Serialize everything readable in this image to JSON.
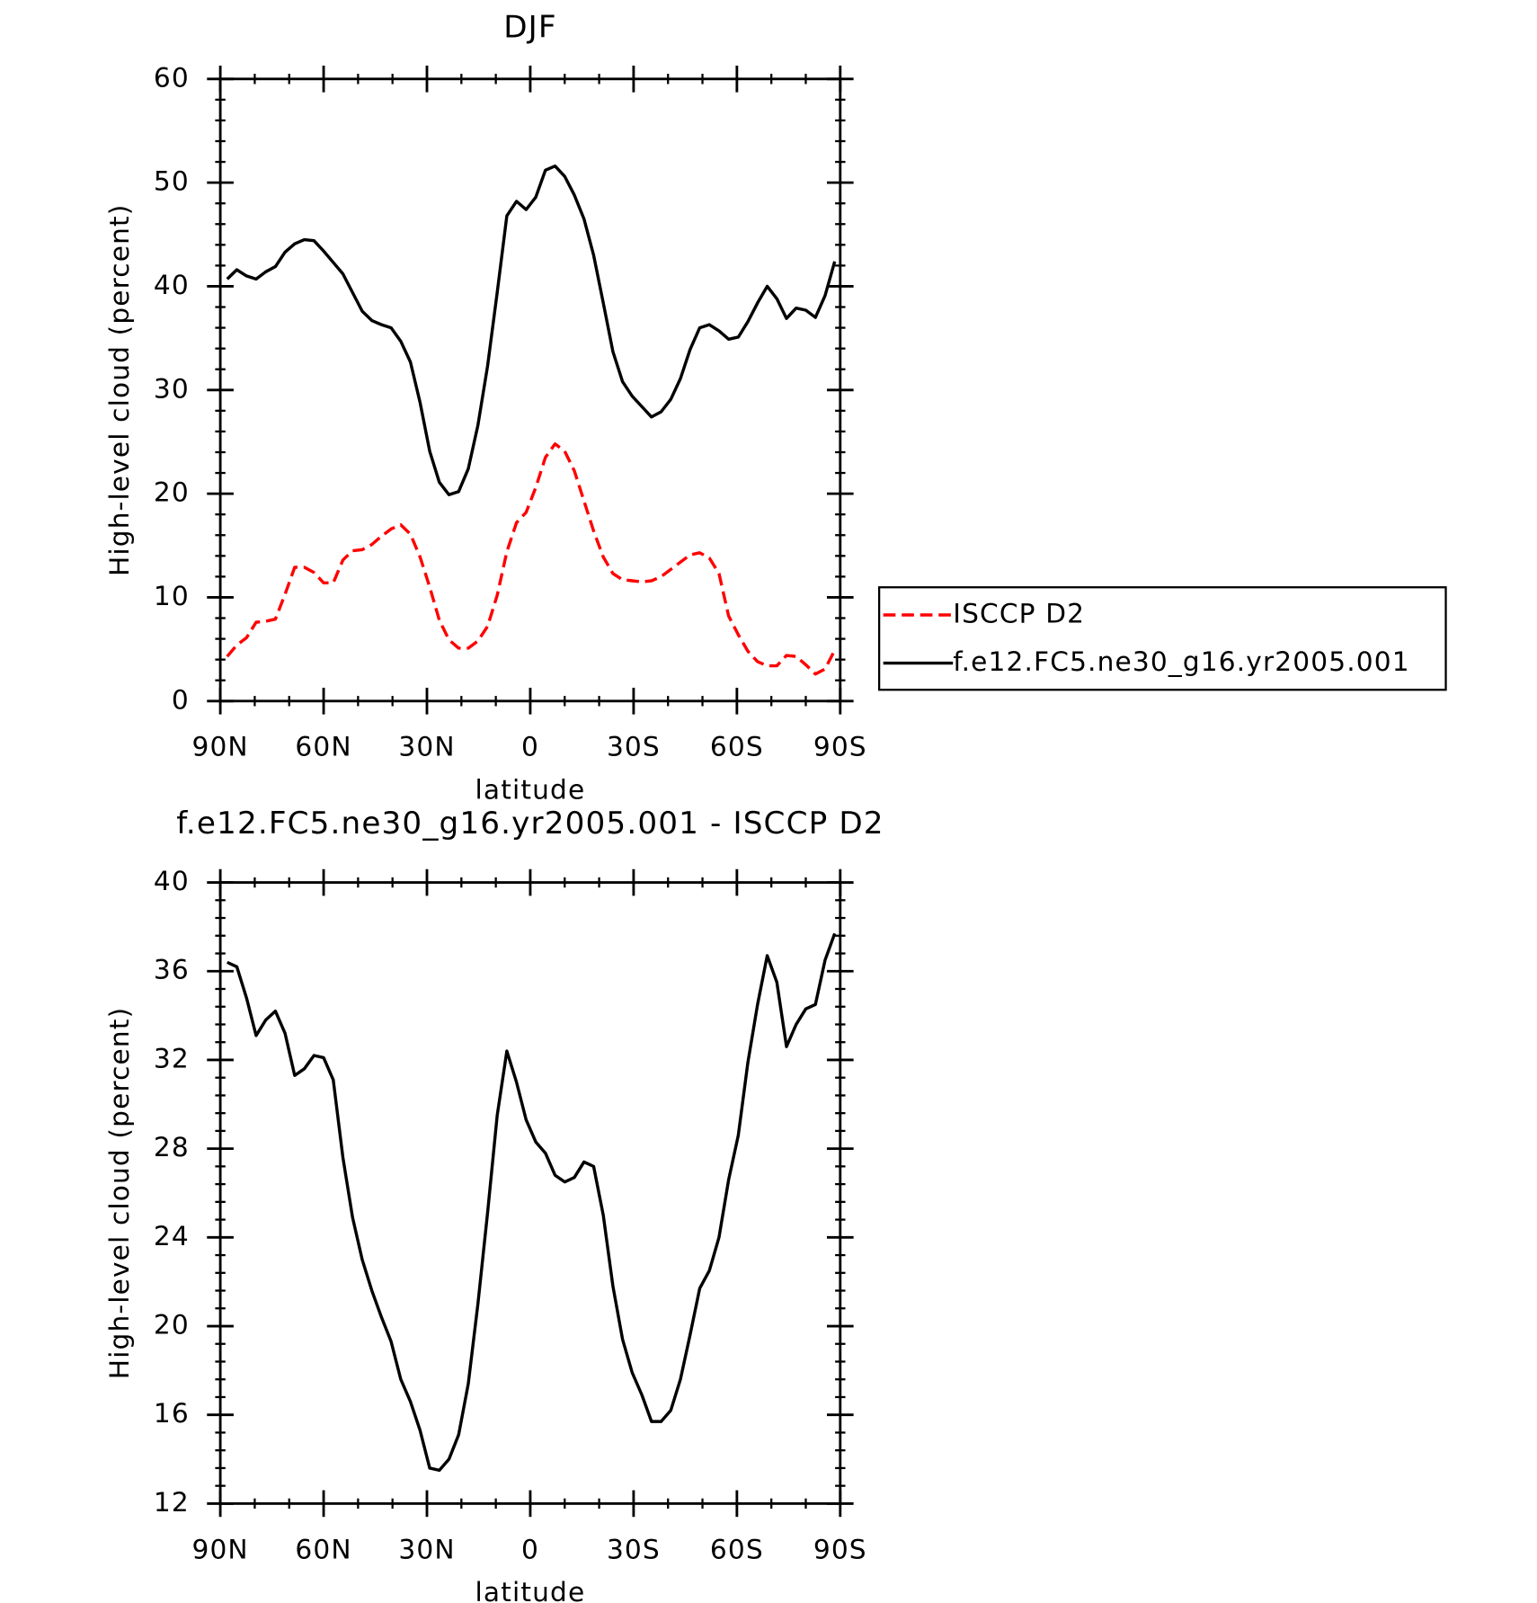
{
  "chart_data": [
    {
      "type": "line",
      "title": "DJF",
      "xlabel": "latitude",
      "ylabel": "High-level cloud (percent)",
      "x": [
        88,
        85.2,
        82.4,
        79.6,
        76.8,
        74,
        71.2,
        68.4,
        65.6,
        62.8,
        60,
        57.2,
        54.4,
        51.6,
        48.8,
        46,
        43.2,
        40.4,
        37.6,
        34.8,
        32,
        29.2,
        26.4,
        23.6,
        20.8,
        18,
        15.2,
        12.4,
        9.6,
        6.8,
        4,
        1.2,
        -1.6,
        -4.4,
        -7.2,
        -10,
        -12.8,
        -15.6,
        -18.4,
        -21.2,
        -24,
        -26.8,
        -29.6,
        -32.4,
        -35.2,
        -38,
        -40.8,
        -43.6,
        -46.4,
        -49.2,
        -52,
        -54.8,
        -57.6,
        -60.4,
        -63.2,
        -66,
        -68.8,
        -71.6,
        -74.4,
        -77.2,
        -80,
        -82.8,
        -85.6,
        -88.4
      ],
      "series": [
        {
          "name": "ISCCP D2",
          "color": "#ff0000",
          "linestyle": "dashed",
          "values": [
            4.3,
            5.4,
            6.1,
            7.6,
            7.7,
            7.9,
            10.3,
            12.9,
            12.9,
            12.4,
            11.4,
            11.4,
            13.6,
            14.5,
            14.6,
            15.1,
            15.9,
            16.6,
            17,
            16.1,
            13.9,
            11,
            7.8,
            5.9,
            5.1,
            5.1,
            5.8,
            7.2,
            10.2,
            14.4,
            17.2,
            18.2,
            20.6,
            23.5,
            24.8,
            24.1,
            22.2,
            19.3,
            16.4,
            13.9,
            12.3,
            11.7,
            11.6,
            11.5,
            11.6,
            12,
            12.7,
            13.4,
            14.1,
            14.3,
            13.8,
            12.3,
            8.2,
            6.4,
            4.8,
            3.8,
            3.4,
            3.4,
            4.4,
            4.3,
            3.5,
            2.6,
            3.1,
            4.9
          ]
        },
        {
          "name": "f.e12.FC5.ne30_g16.yr2005.001",
          "color": "#000000",
          "linestyle": "solid",
          "values": [
            40.7,
            41.6,
            41,
            40.7,
            41.4,
            41.9,
            43.3,
            44.1,
            44.5,
            44.4,
            43.4,
            42.3,
            41.2,
            39.4,
            37.6,
            36.7,
            36.3,
            36,
            34.7,
            32.7,
            28.8,
            24.1,
            21.1,
            19.9,
            20.2,
            22.4,
            26.6,
            32.3,
            39.4,
            46.8,
            48.2,
            47.4,
            48.6,
            51.2,
            51.6,
            50.6,
            48.8,
            46.5,
            43,
            38.4,
            33.7,
            30.8,
            29.4,
            28.4,
            27.4,
            27.9,
            29.1,
            31.1,
            33.9,
            36,
            36.3,
            35.7,
            34.9,
            35.1,
            36.6,
            38.4,
            40,
            38.8,
            36.9,
            37.9,
            37.7,
            37,
            39.1,
            42.4
          ]
        }
      ],
      "xlim": [
        90,
        -90
      ],
      "xticks": [
        {
          "value": 90,
          "label": "90N"
        },
        {
          "value": 60,
          "label": "60N"
        },
        {
          "value": 30,
          "label": "30N"
        },
        0,
        {
          "value": -30,
          "label": "30S"
        },
        {
          "value": -60,
          "label": "60S"
        },
        {
          "value": -90,
          "label": "90S"
        }
      ],
      "ylim": [
        0,
        60
      ],
      "yticks": [
        0,
        10,
        20,
        30,
        40,
        50,
        60
      ],
      "legend": "right"
    },
    {
      "type": "line",
      "title": "f.e12.FC5.ne30_g16.yr2005.001 - ISCCP D2",
      "xlabel": "latitude",
      "ylabel": "High-level cloud (percent)",
      "x": [
        88,
        85.2,
        82.4,
        79.6,
        76.8,
        74,
        71.2,
        68.4,
        65.6,
        62.8,
        60,
        57.2,
        54.4,
        51.6,
        48.8,
        46,
        43.2,
        40.4,
        37.6,
        34.8,
        32,
        29.2,
        26.4,
        23.6,
        20.8,
        18,
        15.2,
        12.4,
        9.6,
        6.8,
        4,
        1.2,
        -1.6,
        -4.4,
        -7.2,
        -10,
        -12.8,
        -15.6,
        -18.4,
        -21.2,
        -24,
        -26.8,
        -29.6,
        -32.4,
        -35.2,
        -38,
        -40.8,
        -43.6,
        -46.4,
        -49.2,
        -52,
        -54.8,
        -57.6,
        -60.4,
        -63.2,
        -66,
        -68.8,
        -71.6,
        -74.4,
        -77.2,
        -80,
        -82.8,
        -85.6,
        -88.4
      ],
      "series": [
        {
          "color": "#000000",
          "linestyle": "solid",
          "values": [
            36.4,
            36.2,
            34.8,
            33.1,
            33.8,
            34.2,
            33.2,
            31.3,
            31.6,
            32.2,
            32.1,
            31.1,
            27.6,
            24.9,
            23,
            21.6,
            20.4,
            19.3,
            17.6,
            16.6,
            15.3,
            13.6,
            13.5,
            14,
            15.1,
            17.4,
            21,
            25.1,
            29.5,
            32.4,
            31,
            29.3,
            28.3,
            27.8,
            26.8,
            26.5,
            26.7,
            27.4,
            27.2,
            25,
            21.8,
            19.4,
            17.9,
            16.9,
            15.7,
            15.7,
            16.2,
            17.6,
            19.6,
            21.7,
            22.5,
            24,
            26.6,
            28.6,
            31.9,
            34.5,
            36.7,
            35.5,
            32.6,
            33.6,
            34.3,
            34.5,
            36.5,
            37.7
          ]
        }
      ],
      "xlim": [
        90,
        -90
      ],
      "xticks": [
        {
          "value": 90,
          "label": "90N"
        },
        {
          "value": 60,
          "label": "60N"
        },
        {
          "value": 30,
          "label": "30N"
        },
        0,
        {
          "value": -30,
          "label": "30S"
        },
        {
          "value": -60,
          "label": "60S"
        },
        {
          "value": -90,
          "label": "90S"
        }
      ],
      "ylim": [
        12,
        40
      ],
      "yticks": [
        12,
        16,
        20,
        24,
        28,
        32,
        36,
        40
      ]
    }
  ]
}
